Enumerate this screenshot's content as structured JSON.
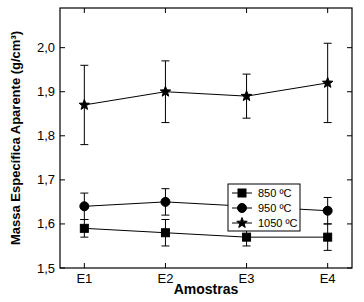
{
  "chart_data": {
    "type": "line",
    "x_label": "Amostras",
    "y_label": "Massa Específica Aparente (g/cm³)",
    "categories": [
      "E1",
      "E2",
      "E3",
      "E4"
    ],
    "series": [
      {
        "name": "850 ºC",
        "color": "#000000",
        "marker": "square",
        "line_style": "solid",
        "values": [
          1.59,
          1.58,
          1.57,
          1.57
        ],
        "errors": [
          0.02,
          0.03,
          0.02,
          0.03
        ]
      },
      {
        "name": "950 ºC",
        "color": "#000000",
        "marker": "circle",
        "line_style": "solid",
        "values": [
          1.64,
          1.65,
          1.64,
          1.63
        ],
        "errors": [
          0.03,
          0.03,
          0.03,
          0.03
        ]
      },
      {
        "name": "1050 ºC",
        "color": "#000000",
        "marker": "star",
        "line_style": "solid",
        "values": [
          1.87,
          1.9,
          1.89,
          1.92
        ],
        "errors": [
          0.09,
          0.07,
          0.05,
          0.09
        ]
      }
    ],
    "ylim": [
      1.5,
      2.09
    ],
    "yticks": [
      {
        "value": 1.5,
        "label": "1,5"
      },
      {
        "value": 1.6,
        "label": "1,6"
      },
      {
        "value": 1.7,
        "label": "1,7"
      },
      {
        "value": 1.8,
        "label": "1,8"
      },
      {
        "value": 1.9,
        "label": "1,9"
      },
      {
        "value": 2.0,
        "label": "2,0"
      }
    ],
    "legend": "right",
    "grid": false
  }
}
